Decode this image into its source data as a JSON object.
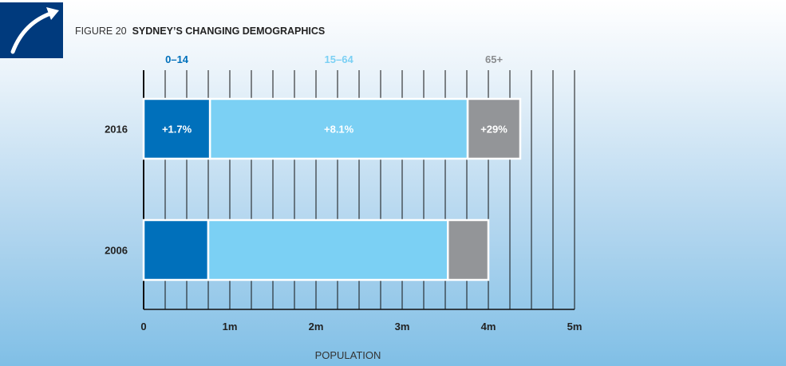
{
  "header": {
    "figure_label": "FIGURE 20",
    "title": "SYDNEY’S CHANGING DEMOGRAPHICS"
  },
  "chart_data": {
    "type": "bar",
    "orientation": "horizontal",
    "stacked": true,
    "title": "SYDNEY’S CHANGING DEMOGRAPHICS",
    "xlabel": "POPULATION",
    "ylabel": "",
    "xlim": [
      0,
      5
    ],
    "xticks": [
      "0",
      "1m",
      "2m",
      "3m",
      "4m",
      "5m"
    ],
    "categories": [
      "2016",
      "2006"
    ],
    "series": [
      {
        "name": "0–14",
        "color": "#0070bb",
        "values": [
          0.77,
          0.75
        ],
        "labels": [
          "+1.7%",
          ""
        ]
      },
      {
        "name": "15–64",
        "color": "#7bd0f4",
        "values": [
          2.99,
          2.78
        ],
        "labels": [
          "+8.1%",
          ""
        ]
      },
      {
        "name": "65+",
        "color": "#939598",
        "values": [
          0.61,
          0.47
        ],
        "labels": [
          "+29%",
          ""
        ]
      }
    ],
    "legend": "top",
    "grid": true
  }
}
